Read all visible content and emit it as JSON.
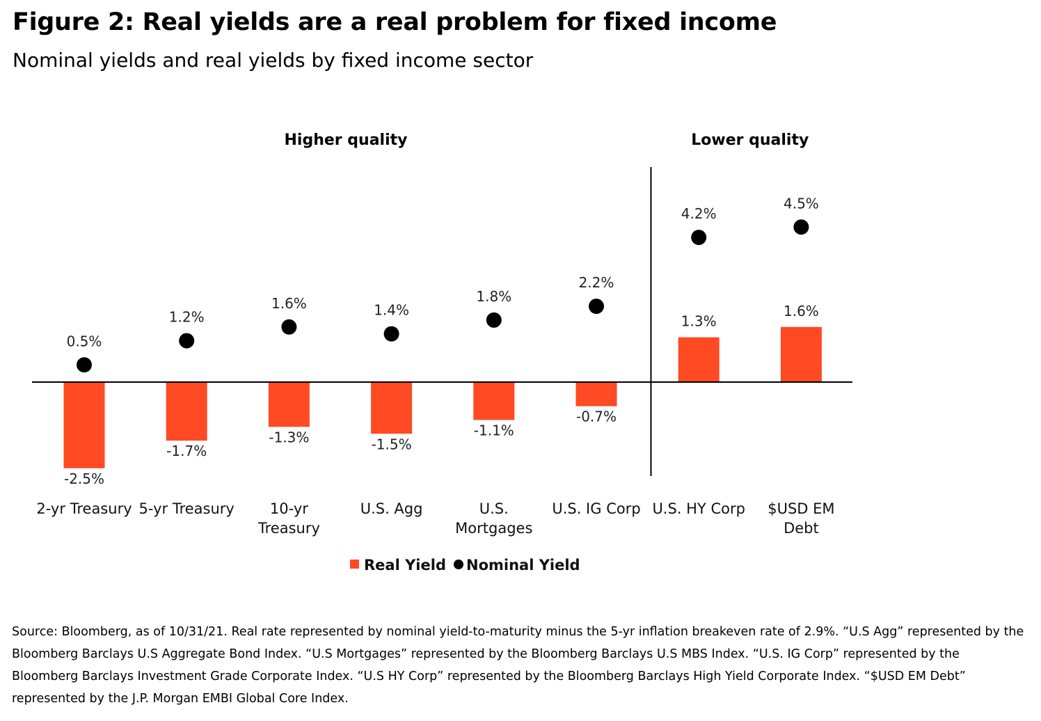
{
  "figure": {
    "title": "Figure 2: Real yields are a real problem for fixed income",
    "subtitle": "Nominal yields and real yields by fixed income sector",
    "source": "Source: Bloomberg, as of 10/31/21. Real rate represented by nominal yield-to-maturity minus the 5-yr inflation breakeven rate of 2.9%. “U.S Agg” represented by the Bloomberg Barclays U.S Aggregate Bond Index. “U.S Mortgages” represented by the Bloomberg Barclays U.S MBS Index. “U.S. IG Corp” represented by the Bloomberg Barclays Investment Grade Corporate Index. “U.S HY Corp” represented by the Bloomberg Barclays High Yield Corporate Index. “$USD EM Debt” represented by the J.P. Morgan EMBI Global Core Index."
  },
  "chart_data": {
    "type": "bar",
    "categories": [
      [
        "2-yr Treasury"
      ],
      [
        "5-yr Treasury"
      ],
      [
        "10-yr",
        "Treasury"
      ],
      [
        "U.S. Agg"
      ],
      [
        "U.S.",
        "Mortgages"
      ],
      [
        "U.S. IG Corp"
      ],
      [
        "U.S. HY Corp"
      ],
      [
        "$USD EM",
        "Debt"
      ]
    ],
    "groups": [
      {
        "label": "Higher quality",
        "from": 0,
        "to": 5
      },
      {
        "label": "Lower quality",
        "from": 6,
        "to": 7
      }
    ],
    "series": [
      {
        "name": "Real Yield",
        "kind": "bar",
        "color": "#ff4a24",
        "values": [
          -2.5,
          -1.7,
          -1.3,
          -1.5,
          -1.1,
          -0.7,
          1.3,
          1.6
        ],
        "labels": [
          "-2.5%",
          "-1.7%",
          "-1.3%",
          "-1.5%",
          "-1.1%",
          "-0.7%",
          "1.3%",
          "1.6%"
        ]
      },
      {
        "name": "Nominal Yield",
        "kind": "dot",
        "color": "#000000",
        "values": [
          0.5,
          1.2,
          1.6,
          1.4,
          1.8,
          2.2,
          4.2,
          4.5
        ],
        "labels": [
          "0.5%",
          "1.2%",
          "1.6%",
          "1.4%",
          "1.8%",
          "2.2%",
          "4.2%",
          "4.5%"
        ]
      }
    ],
    "ylim": [
      -2.7,
      5.0
    ],
    "legend": [
      "Real Yield",
      "Nominal Yield"
    ],
    "legend_position": "bottom"
  }
}
